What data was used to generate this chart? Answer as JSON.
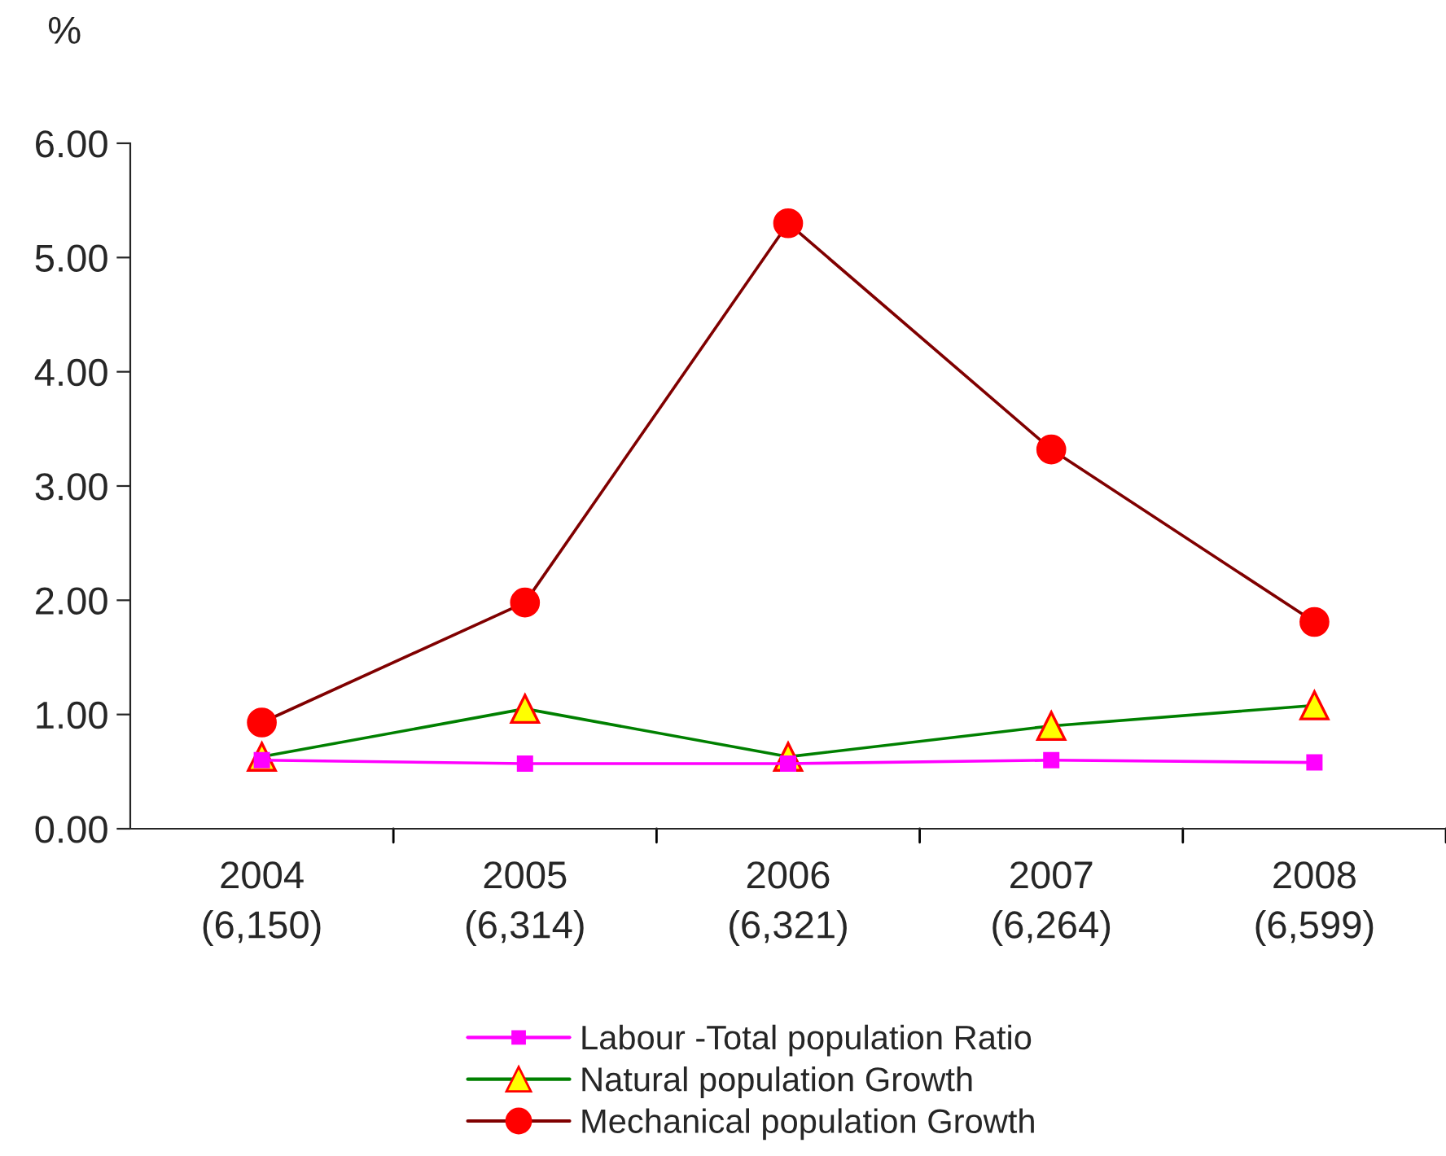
{
  "chart_data": {
    "type": "line",
    "ylabel": "%",
    "categories": [
      "2004\n(6,150)",
      "2005\n(6,314)",
      "2006\n(6,321)",
      "2007\n(6,264)",
      "2008\n(6,599)"
    ],
    "ylim": [
      0,
      6
    ],
    "yticks": [
      {
        "value": 0,
        "label": "0.00"
      },
      {
        "value": 1,
        "label": "1.00"
      },
      {
        "value": 2,
        "label": "2.00"
      },
      {
        "value": 3,
        "label": "3.00"
      },
      {
        "value": 4,
        "label": "4.00"
      },
      {
        "value": 5,
        "label": "5.00"
      },
      {
        "value": 6,
        "label": "6.00"
      }
    ],
    "grid": false,
    "legend": "bottom",
    "line_style": "solid",
    "series": [
      {
        "name": "Labour -Total population Ratio",
        "color": "#ff00ff",
        "marker": "square",
        "values": [
          0.6,
          0.57,
          0.57,
          0.6,
          0.58
        ]
      },
      {
        "name": "Natural population Growth",
        "color": "#008000",
        "marker": "triangle",
        "values": [
          0.63,
          1.05,
          0.63,
          0.9,
          1.08
        ]
      },
      {
        "name": "Mechanical population Growth",
        "color": "#800000",
        "marker": "circle",
        "values": [
          0.93,
          1.98,
          5.3,
          3.32,
          1.81
        ]
      }
    ]
  }
}
